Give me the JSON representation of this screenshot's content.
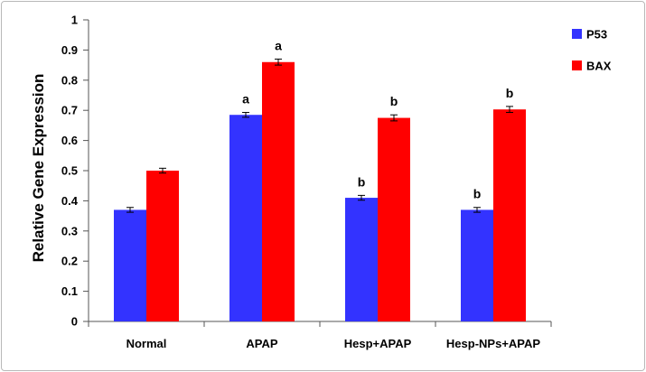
{
  "chart_data": {
    "type": "bar",
    "title": "",
    "xlabel": "",
    "ylabel": "Relative Gene Expression",
    "ylim": [
      0,
      1
    ],
    "yticks": [
      "0",
      "0.1",
      "0.2",
      "0.3",
      "0.4",
      "0.5",
      "0.6",
      "0.7",
      "0.8",
      "0.9",
      "1"
    ],
    "categories": [
      "Normal",
      "APAP",
      "Hesp+APAP",
      "Hesp-NPs+APAP"
    ],
    "series": [
      {
        "name": "P53",
        "color": "#3333ff",
        "values": [
          0.37,
          0.685,
          0.41,
          0.37
        ],
        "errors": [
          0.008,
          0.008,
          0.008,
          0.008
        ],
        "labels": [
          "",
          "a",
          "b",
          "b"
        ]
      },
      {
        "name": "BAX",
        "color": "#ff0000",
        "values": [
          0.5,
          0.86,
          0.675,
          0.703
        ],
        "errors": [
          0.008,
          0.01,
          0.01,
          0.01
        ],
        "labels": [
          "",
          "a",
          "b",
          "b"
        ]
      }
    ],
    "grid": false,
    "legend": "top-right"
  }
}
